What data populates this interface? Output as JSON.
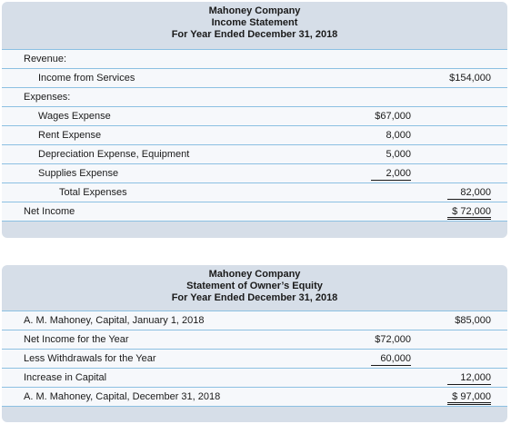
{
  "income_statement": {
    "header": [
      "Mahoney Company",
      "Income Statement",
      "For Year Ended December 31, 2018"
    ],
    "rows": [
      {
        "label": "Revenue:"
      },
      {
        "label": "Income from Services",
        "right": "$154,000"
      },
      {
        "label": "Expenses:"
      },
      {
        "label": "Wages Expense",
        "middle": "$67,000"
      },
      {
        "label": "Rent Expense",
        "middle": "8,000"
      },
      {
        "label": "Depreciation Expense, Equipment",
        "middle": "5,000"
      },
      {
        "label": "Supplies Expense",
        "middle": "2,000"
      },
      {
        "label": "Total Expenses",
        "right": "82,000"
      },
      {
        "label": "Net Income",
        "right": "$ 72,000"
      }
    ]
  },
  "owners_equity": {
    "header": [
      "Mahoney Company",
      "Statement of Owner’s Equity",
      "For Year Ended December 31, 2018"
    ],
    "rows": [
      {
        "label": "A. M. Mahoney, Capital, January 1, 2018",
        "right": "$85,000"
      },
      {
        "label": "Net Income for the Year",
        "middle": "$72,000"
      },
      {
        "label": "Less Withdrawals for the Year",
        "middle": "60,000"
      },
      {
        "label": "Increase in Capital",
        "right": "12,000"
      },
      {
        "label": "A. M. Mahoney, Capital, December 31, 2018",
        "right": "$ 97,000"
      }
    ]
  }
}
